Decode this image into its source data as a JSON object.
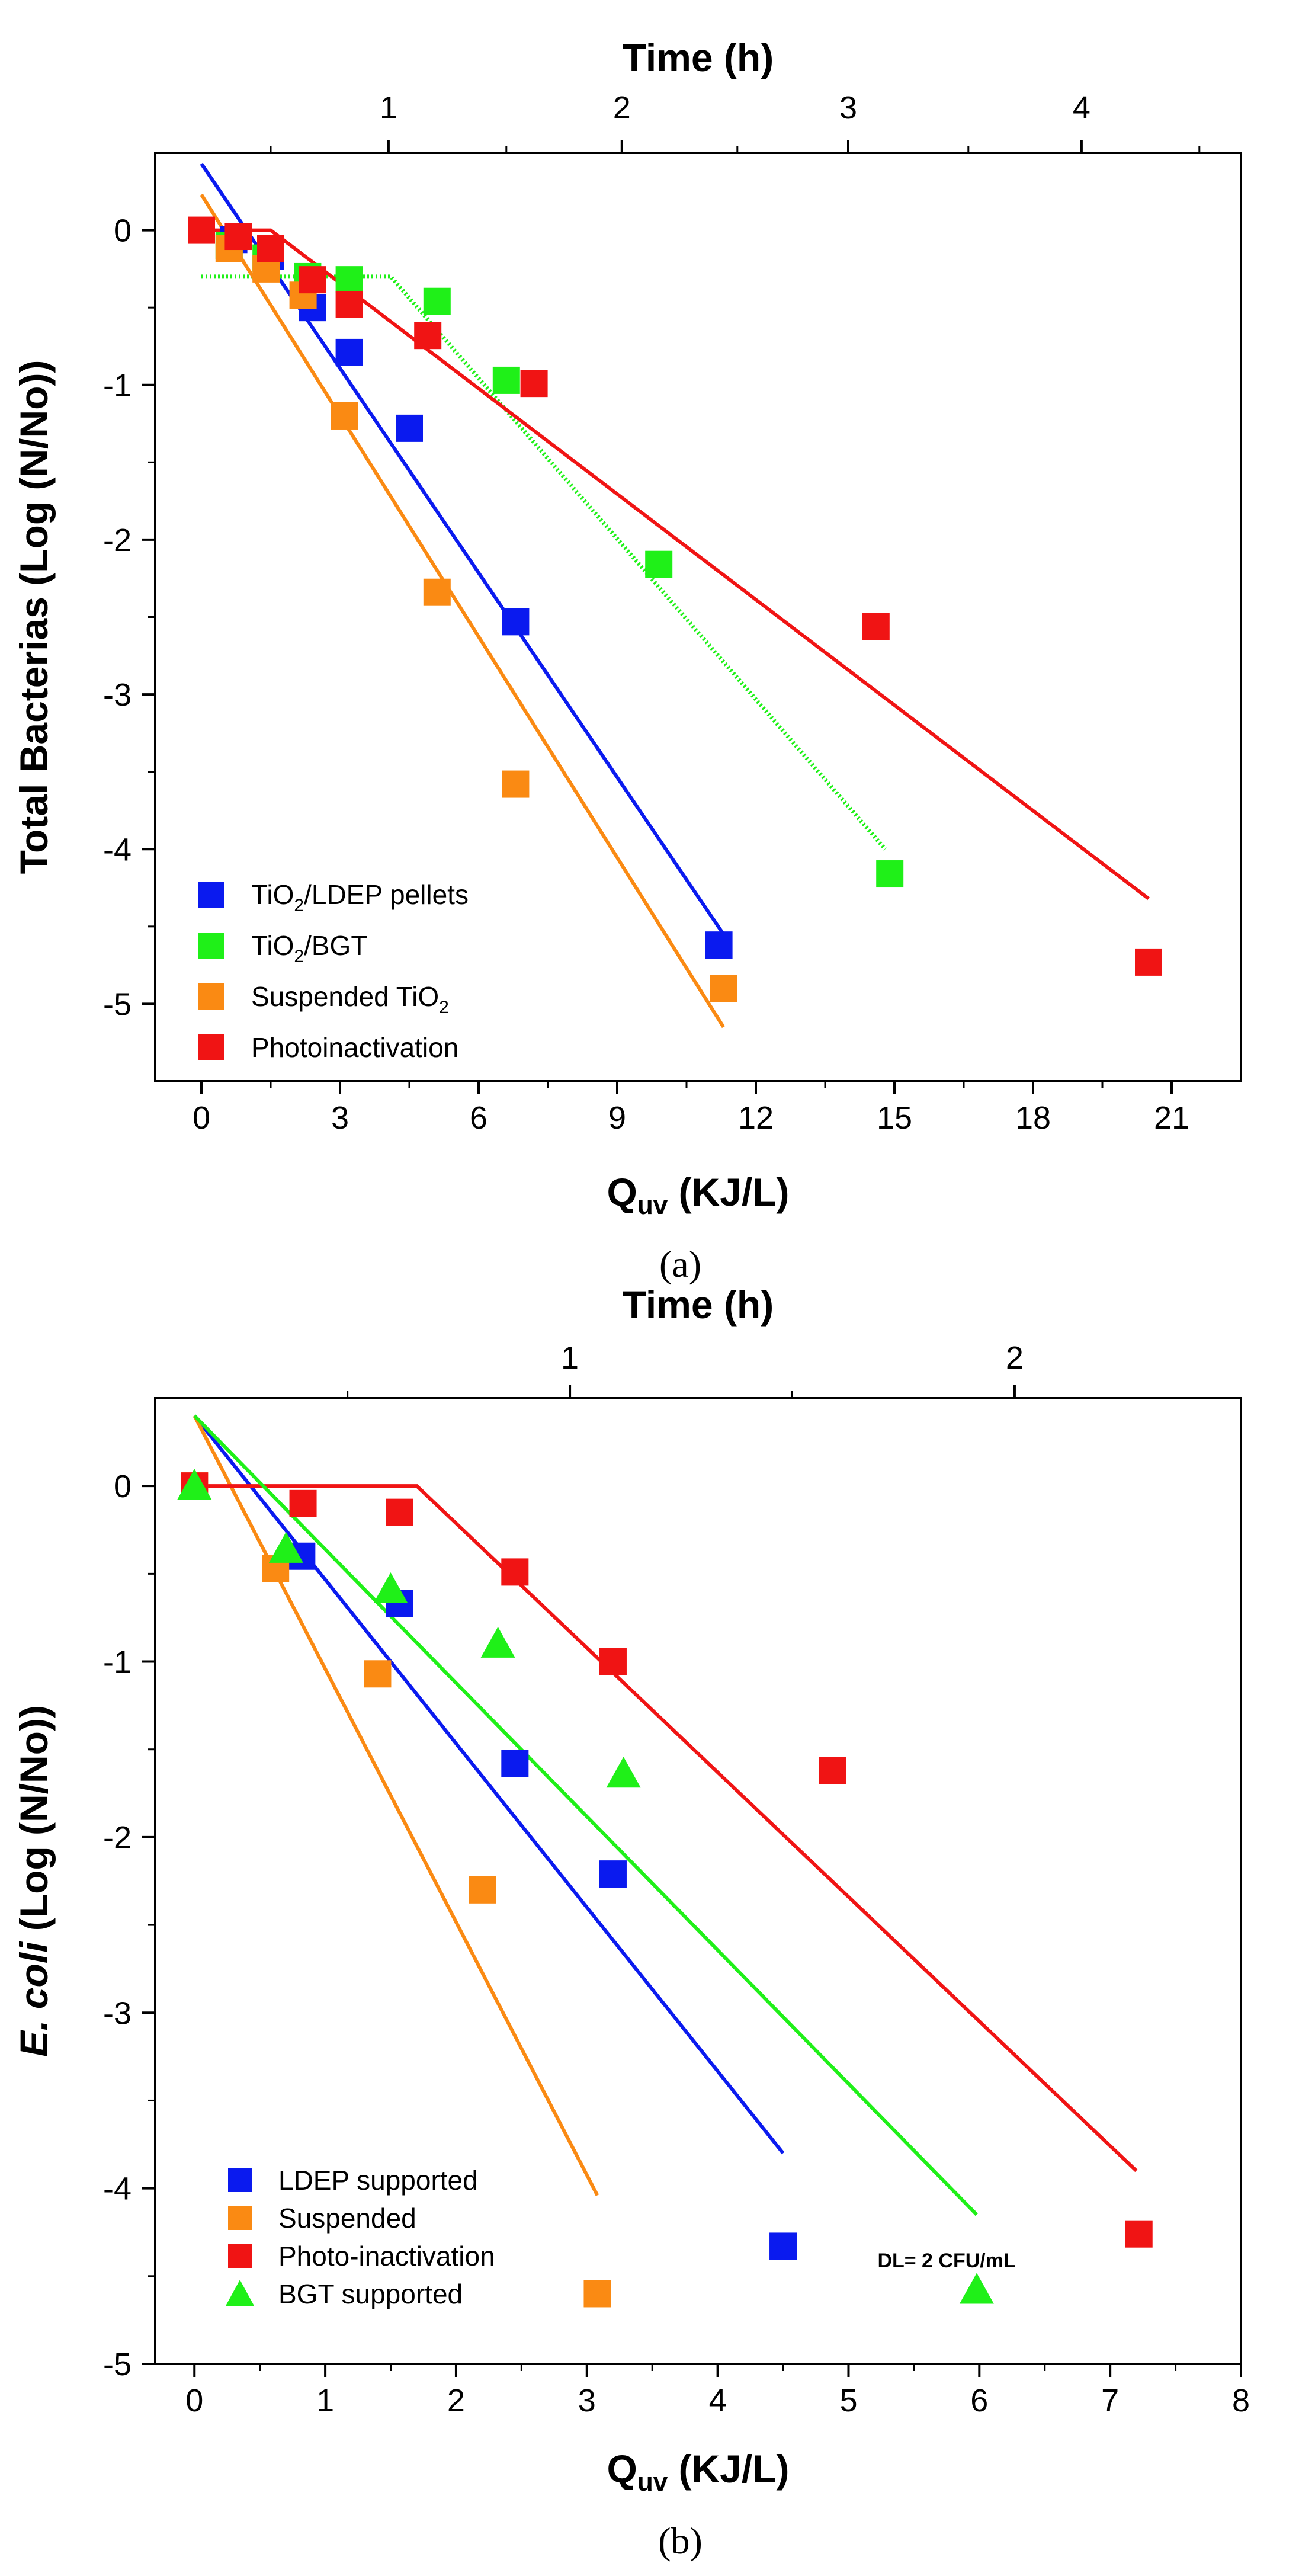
{
  "chart_data": [
    {
      "type": "scatter",
      "panel_label": "(a)",
      "xlabel": "Q",
      "xlabel_sub": "uv",
      "xlabel_unit": " (KJ/L)",
      "ylabel": "Total Bacterias (Log (N/No))",
      "top_xlabel": "Time (h)",
      "xlim": [
        -1,
        22.5
      ],
      "ylim": [
        -5.5,
        0.5
      ],
      "x_ticks": [
        "0",
        "3",
        "6",
        "9",
        "12",
        "15",
        "18",
        "21"
      ],
      "y_ticks": [
        "0",
        "-1",
        "-2",
        "-3",
        "-4",
        "-5"
      ],
      "top_ticks": [
        "1",
        "2",
        "3",
        "4"
      ],
      "top_tick_positions_q": [
        4.05,
        9.1,
        14.0,
        19.05
      ],
      "top_minor_positions_q": [
        1.5,
        6.6,
        11.6,
        16.6,
        21.6
      ],
      "legend_placement": "bottom-left",
      "grid": false,
      "series": [
        {
          "name": "TiO₂/LDEP pellets",
          "legend_parts": [
            "TiO",
            "2",
            "/LDEP pellets"
          ],
          "color": "#0a1aef",
          "marker": "square",
          "points": [
            [
              0.7,
              -0.06
            ],
            [
              1.5,
              -0.17
            ],
            [
              2.4,
              -0.5
            ],
            [
              3.2,
              -0.79
            ],
            [
              4.5,
              -1.28
            ],
            [
              6.8,
              -2.53
            ],
            [
              11.2,
              -4.62
            ]
          ],
          "fit": {
            "style": "solid",
            "points": [
              [
                0,
                0.43
              ],
              [
                11.3,
                -4.55
              ]
            ]
          }
        },
        {
          "name": "TiO₂/BGT",
          "legend_parts": [
            "TiO",
            "2",
            "/BGT"
          ],
          "color": "#1ff018",
          "marker": "square",
          "points": [
            [
              0.6,
              -0.1
            ],
            [
              1.4,
              -0.18
            ],
            [
              2.3,
              -0.3
            ],
            [
              3.2,
              -0.32
            ],
            [
              5.1,
              -0.46
            ],
            [
              6.6,
              -0.97
            ],
            [
              9.9,
              -2.16
            ],
            [
              14.9,
              -4.16
            ]
          ],
          "fit": {
            "style": "dotted",
            "points": [
              [
                0,
                -0.3
              ],
              [
                4.1,
                -0.3
              ],
              [
                14.8,
                -4.0
              ]
            ]
          }
        },
        {
          "name": "Suspended TiO₂",
          "legend_parts": [
            "Suspended TiO",
            "2",
            ""
          ],
          "color": "#fa8a13",
          "marker": "square",
          "points": [
            [
              0.6,
              -0.12
            ],
            [
              1.4,
              -0.25
            ],
            [
              2.2,
              -0.42
            ],
            [
              3.1,
              -1.2
            ],
            [
              5.1,
              -2.34
            ],
            [
              6.8,
              -3.58
            ],
            [
              11.3,
              -4.9
            ]
          ],
          "fit": {
            "style": "solid",
            "points": [
              [
                0,
                0.23
              ],
              [
                11.3,
                -5.15
              ]
            ]
          }
        },
        {
          "name": "Photoinactivation",
          "legend_parts": [
            "Photoinactivation",
            "",
            ""
          ],
          "color": "#f01414",
          "marker": "square",
          "points": [
            [
              0,
              0.0
            ],
            [
              0.8,
              -0.04
            ],
            [
              1.5,
              -0.12
            ],
            [
              2.4,
              -0.32
            ],
            [
              3.2,
              -0.48
            ],
            [
              4.9,
              -0.68
            ],
            [
              7.2,
              -0.99
            ],
            [
              14.6,
              -2.56
            ],
            [
              20.5,
              -4.73
            ]
          ],
          "fit": {
            "style": "solid",
            "points": [
              [
                0,
                0.0
              ],
              [
                1.5,
                0.0
              ],
              [
                20.5,
                -4.32
              ]
            ]
          }
        }
      ]
    },
    {
      "type": "scatter",
      "panel_label": "(b)",
      "xlabel": "Q",
      "xlabel_sub": "uv",
      "xlabel_unit": " (KJ/L)",
      "ylabel_italic": "E. coli",
      "ylabel_rest": " (Log (N/No))",
      "top_xlabel": "Time (h)",
      "xlim": [
        -0.3,
        8.0
      ],
      "ylim": [
        -5.0,
        0.5
      ],
      "x_ticks": [
        "0",
        "1",
        "2",
        "3",
        "4",
        "5",
        "6",
        "7",
        "8"
      ],
      "y_ticks": [
        "0",
        "-1",
        "-2",
        "-3",
        "-4",
        "-5"
      ],
      "top_ticks": [
        "1",
        "2"
      ],
      "top_tick_positions_q": [
        2.87,
        6.27
      ],
      "top_minor_positions_q": [
        1.17,
        4.57
      ],
      "legend_placement": "bottom-left",
      "annotation": "DL= 2 CFU/mL",
      "annotation_pos_q": [
        5.75,
        -4.45
      ],
      "grid": false,
      "series": [
        {
          "name": "LDEP supported",
          "color": "#0a1aef",
          "marker": "square",
          "points": [
            [
              0.82,
              -0.4
            ],
            [
              1.57,
              -0.67
            ],
            [
              2.45,
              -1.58
            ],
            [
              3.2,
              -2.21
            ],
            [
              4.5,
              -4.33
            ]
          ],
          "fit": {
            "style": "solid",
            "points": [
              [
                0,
                0.4
              ],
              [
                4.5,
                -3.8
              ]
            ]
          }
        },
        {
          "name": "Suspended",
          "color": "#fa8a13",
          "marker": "square",
          "points": [
            [
              0,
              0.0
            ],
            [
              0.62,
              -0.47
            ],
            [
              1.4,
              -1.07
            ],
            [
              2.2,
              -2.3
            ],
            [
              3.08,
              -4.6
            ]
          ],
          "fit": {
            "style": "solid",
            "points": [
              [
                0,
                0.4
              ],
              [
                3.08,
                -4.04
              ]
            ]
          }
        },
        {
          "name": "Photo-inactivation",
          "color": "#f01414",
          "marker": "square",
          "points": [
            [
              0,
              0.0
            ],
            [
              0.83,
              -0.1
            ],
            [
              1.57,
              -0.15
            ],
            [
              2.45,
              -0.49
            ],
            [
              3.2,
              -1.0
            ],
            [
              4.88,
              -1.62
            ],
            [
              7.22,
              -4.26
            ]
          ],
          "fit": {
            "style": "solid",
            "points": [
              [
                0,
                0.0
              ],
              [
                1.7,
                0.0
              ],
              [
                7.2,
                -3.9
              ]
            ]
          }
        },
        {
          "name": "BGT supported",
          "color": "#1ff018",
          "marker": "triangle",
          "points": [
            [
              0,
              0.0
            ],
            [
              0.7,
              -0.36
            ],
            [
              1.5,
              -0.59
            ],
            [
              2.32,
              -0.9
            ],
            [
              3.28,
              -1.64
            ],
            [
              5.98,
              -4.58
            ]
          ],
          "fit": {
            "style": "solid",
            "points": [
              [
                0,
                0.4
              ],
              [
                5.98,
                -4.15
              ]
            ]
          }
        }
      ]
    }
  ]
}
